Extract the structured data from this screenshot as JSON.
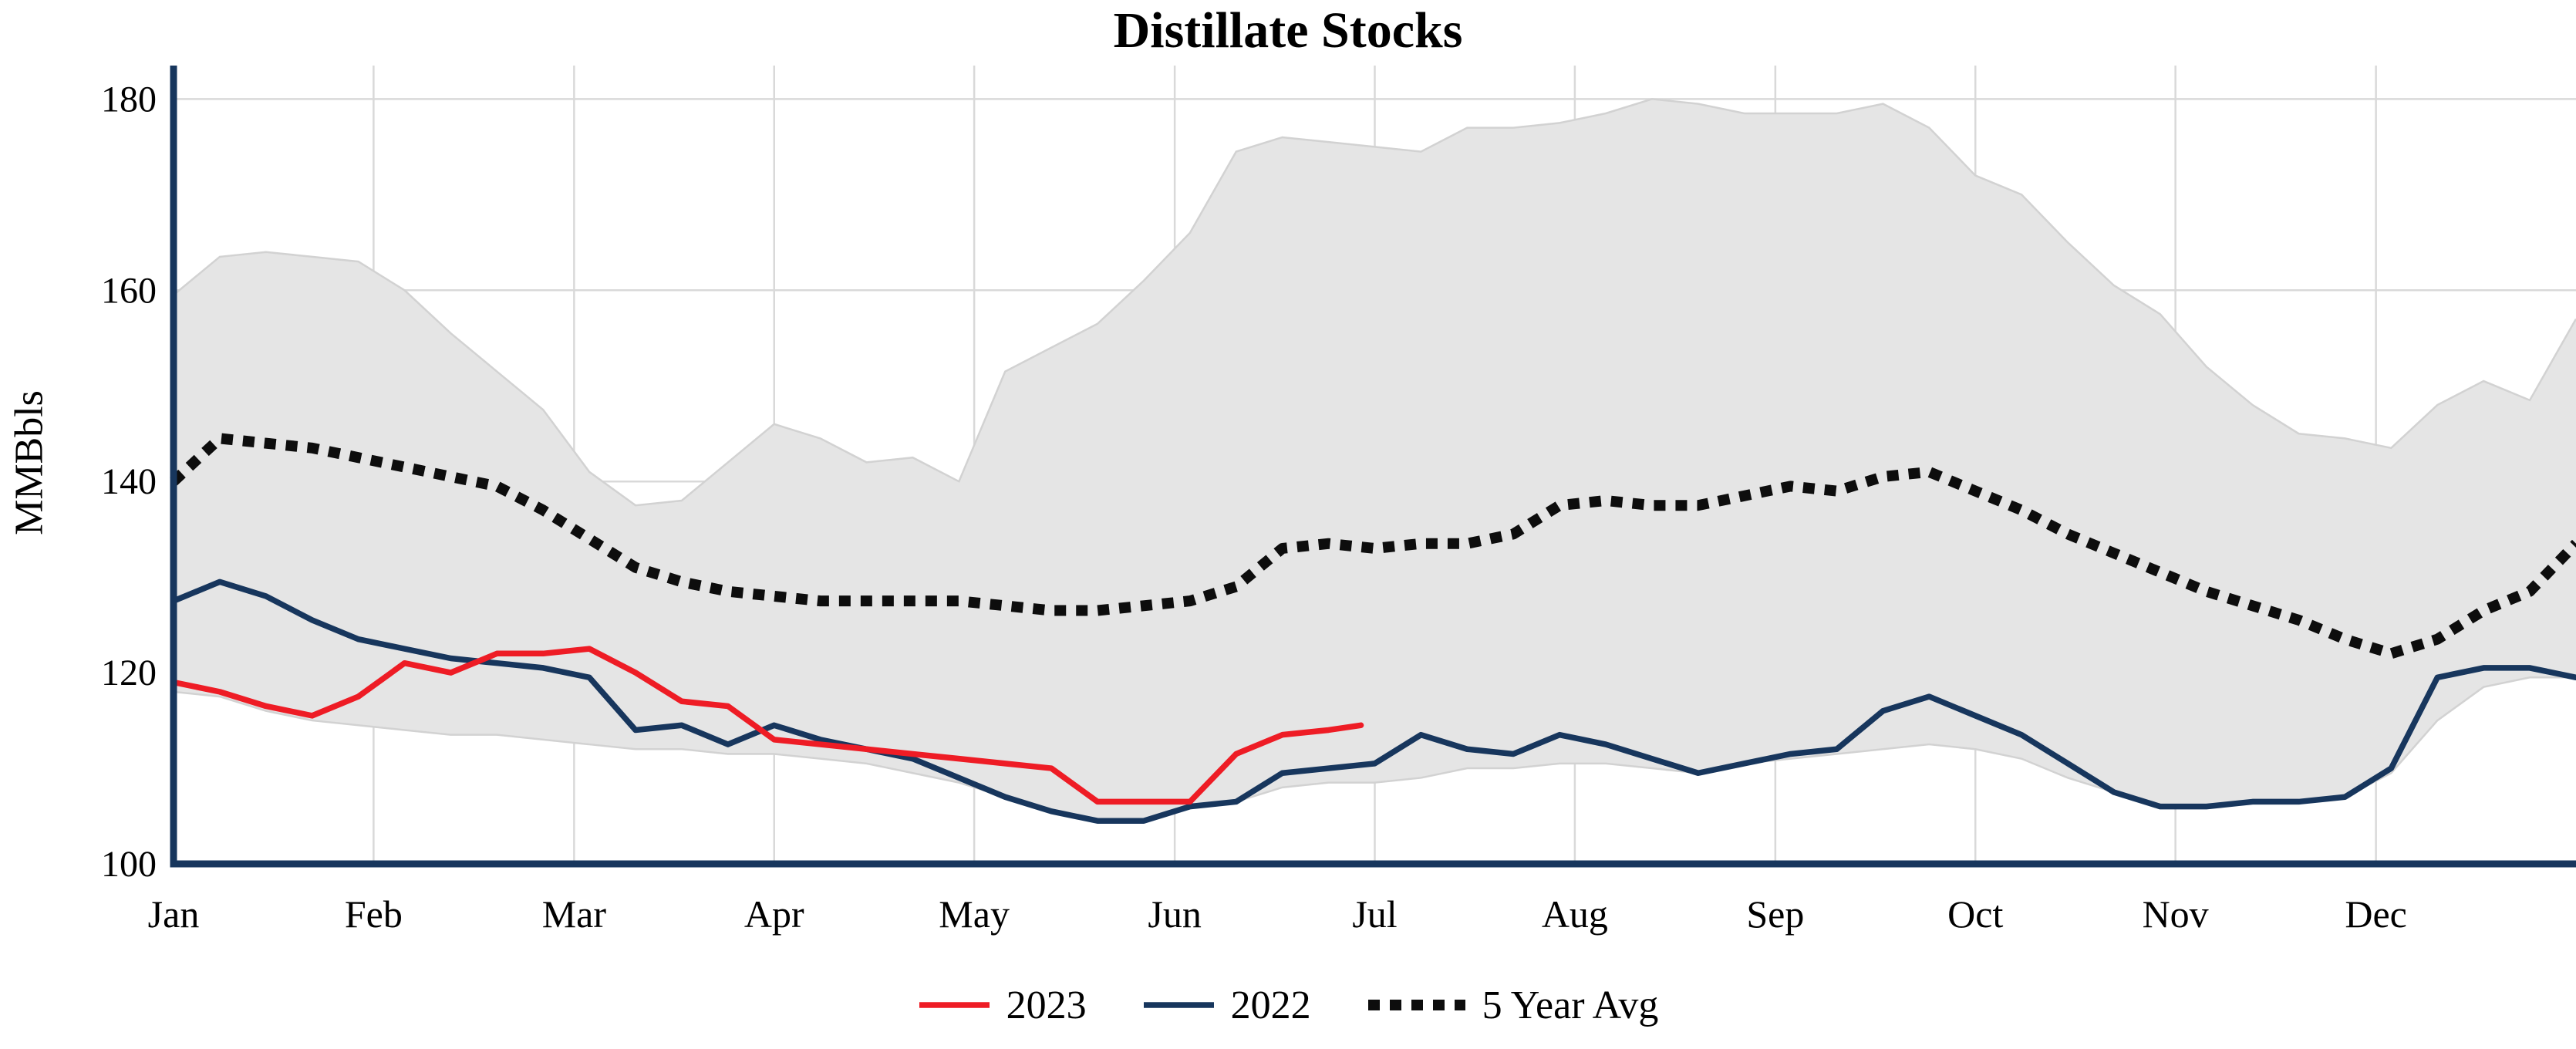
{
  "chart_data": {
    "type": "line",
    "title": "Distillate Stocks",
    "ylabel": "MMBbls",
    "units": "MMBbls",
    "ylim": [
      100,
      180
    ],
    "yticks": [
      100,
      120,
      140,
      160,
      180
    ],
    "xlim_weeks": [
      0,
      52
    ],
    "months": [
      "Jan",
      "Feb",
      "Mar",
      "Apr",
      "May",
      "Jun",
      "Jul",
      "Aug",
      "Sep",
      "Oct",
      "Nov",
      "Dec"
    ],
    "month_week_positions": [
      0,
      4.33,
      8.67,
      13,
      17.33,
      21.67,
      26,
      30.33,
      34.67,
      39,
      43.33,
      47.67
    ],
    "grid": true,
    "legend_position": "bottom-center",
    "colors": {
      "line2023": "#ee1c25",
      "line2022": "#17365d",
      "avg": "#0d0d0d",
      "band_fill": "#e5e5e5",
      "band_edge": "#d2d2d2",
      "axis": "#17365d",
      "grid": "#d9d9d9",
      "text": "#000000"
    },
    "band": {
      "name": "5-year range (shaded)",
      "x_step_weeks": 1,
      "x_start": 0,
      "upper": [
        159.5,
        163.5,
        164,
        163.5,
        163,
        160,
        155.5,
        151.5,
        147.5,
        141,
        137.5,
        138,
        142,
        146,
        144.5,
        142,
        142.5,
        140,
        151.5,
        154,
        156.5,
        161,
        166,
        174.5,
        176,
        175.5,
        175,
        174.5,
        177,
        177,
        177.5,
        178.5,
        180,
        179.5,
        178.5,
        178.5,
        178.5,
        179.5,
        177,
        172,
        170,
        165,
        160.5,
        157.5,
        152,
        148,
        145,
        144.5,
        143.5,
        148,
        150.5,
        148.5,
        157
      ],
      "lower": [
        118,
        117.5,
        116,
        115,
        114.5,
        114,
        113.5,
        113.5,
        113,
        112.5,
        112,
        112,
        111.5,
        111.5,
        111,
        110.5,
        109.5,
        108.5,
        107,
        105.5,
        104.5,
        104.5,
        106,
        106.5,
        108,
        108.5,
        108.5,
        109,
        110,
        110,
        110.5,
        110.5,
        110,
        109.5,
        110.5,
        111,
        111.5,
        112,
        112.5,
        112,
        111,
        109,
        107.5,
        106,
        106,
        106.5,
        106.5,
        107,
        109.5,
        115,
        118.5,
        119.5,
        119.5
      ]
    },
    "series": [
      {
        "name": "5 Year Avg",
        "color_key": "avg",
        "style": "dotted",
        "x_step_weeks": 1,
        "x_start": 0,
        "values": [
          140,
          144.5,
          144,
          143.5,
          142.5,
          141.5,
          140.5,
          139.5,
          137,
          134,
          131,
          129.5,
          128.5,
          128,
          127.5,
          127.5,
          127.5,
          127.5,
          127,
          126.5,
          126.5,
          127,
          127.5,
          129,
          133,
          133.5,
          133,
          133.5,
          133.5,
          134.5,
          137.5,
          138,
          137.5,
          137.5,
          138.5,
          139.5,
          139,
          140.5,
          141,
          139,
          137,
          134.5,
          132.5,
          130.5,
          128.5,
          127,
          125.5,
          123.5,
          122,
          123.5,
          126.5,
          128.5,
          133.5
        ]
      },
      {
        "name": "2022",
        "color_key": "line2022",
        "style": "solid",
        "x_step_weeks": 1,
        "x_start": 0,
        "values": [
          127.5,
          129.5,
          128,
          125.5,
          123.5,
          122.5,
          121.5,
          121,
          120.5,
          119.5,
          114,
          114.5,
          112.5,
          114.5,
          113,
          112,
          111,
          109,
          107,
          105.5,
          104.5,
          104.5,
          106,
          106.5,
          109.5,
          110,
          110.5,
          113.5,
          112,
          111.5,
          113.5,
          112.5,
          111,
          109.5,
          110.5,
          111.5,
          112,
          116,
          117.5,
          115.5,
          113.5,
          110.5,
          107.5,
          106,
          106,
          106.5,
          106.5,
          107,
          110,
          119.5,
          120.5,
          120.5,
          119.5
        ]
      },
      {
        "name": "2023",
        "color_key": "line2023",
        "style": "solid",
        "x_weeks": [
          0,
          1,
          2,
          3,
          4,
          5,
          6,
          7,
          8,
          9,
          10,
          11,
          12,
          13,
          14,
          15,
          16,
          17,
          18,
          19,
          20,
          21,
          22,
          23,
          24,
          25,
          25.7
        ],
        "values": [
          119,
          118,
          116.5,
          115.5,
          117.5,
          121,
          120,
          122,
          122,
          122.5,
          120,
          117,
          116.5,
          113,
          112.5,
          112,
          111.5,
          111,
          110.5,
          110,
          106.5,
          106.5,
          106.5,
          111.5,
          113.5,
          114,
          114.5
        ]
      }
    ],
    "legend": [
      {
        "label": "2023",
        "color_key": "line2023",
        "style": "solid"
      },
      {
        "label": "2022",
        "color_key": "line2022",
        "style": "solid"
      },
      {
        "label": "5 Year Avg",
        "color_key": "avg",
        "style": "dotted"
      }
    ]
  }
}
